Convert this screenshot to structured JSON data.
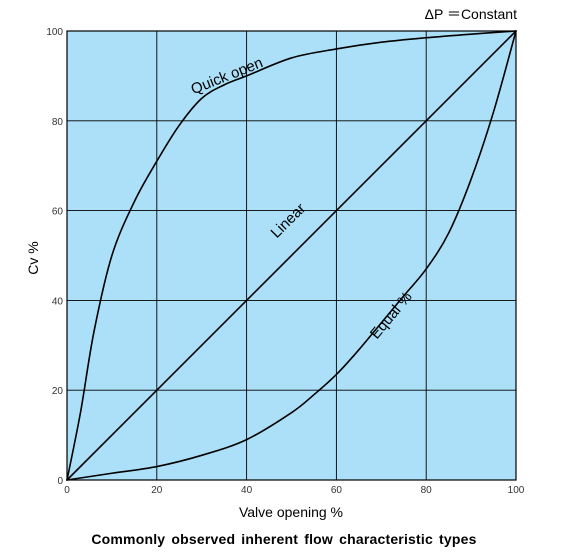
{
  "chart_data": {
    "type": "line",
    "title": "",
    "note": "ΔP ＝Constant",
    "caption": "Commonly observed inherent flow characteristic types",
    "xlabel": "Valve opening %",
    "ylabel": "Cv %",
    "xlim": [
      0,
      100
    ],
    "ylim": [
      0,
      100
    ],
    "xticks": [
      0,
      20,
      40,
      60,
      80,
      100
    ],
    "yticks": [
      0,
      20,
      40,
      60,
      80,
      100
    ],
    "grid": true,
    "plot_background": "#abe0f8",
    "grid_color": "#000000",
    "line_color": "#000000",
    "series": [
      {
        "name": "Quick open",
        "x": [
          0,
          3,
          6,
          10,
          15,
          20,
          25,
          30,
          35,
          40,
          50,
          60,
          70,
          80,
          90,
          100
        ],
        "y": [
          0,
          15,
          33,
          50,
          62,
          71,
          79,
          85,
          88,
          90,
          94,
          96,
          97.5,
          98.5,
          99.3,
          100
        ],
        "label_at": {
          "x": 36,
          "y": 89
        }
      },
      {
        "name": "Linear",
        "x": [
          0,
          100
        ],
        "y": [
          0,
          100
        ],
        "label_at": {
          "x": 50,
          "y": 57
        }
      },
      {
        "name": "Equal %",
        "x": [
          0,
          10,
          20,
          30,
          40,
          50,
          55,
          60,
          65,
          70,
          75,
          80,
          85,
          90,
          95,
          100
        ],
        "y": [
          0,
          1.5,
          3,
          5.5,
          9,
          15,
          19,
          23.5,
          29,
          35,
          41,
          47,
          55,
          67,
          82,
          100
        ],
        "label_at": {
          "x": 73,
          "y": 36
        }
      }
    ]
  }
}
